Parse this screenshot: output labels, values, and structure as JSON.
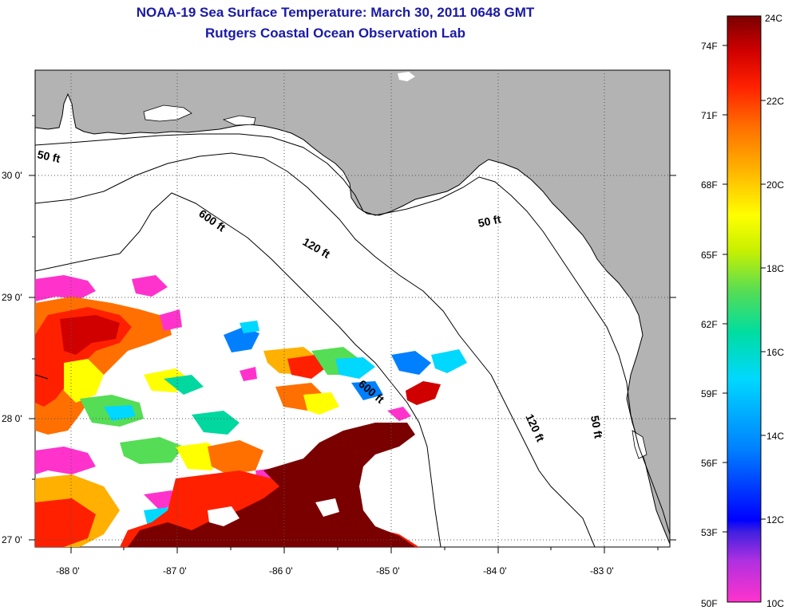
{
  "title_line1": "NOAA-19 Sea Surface Temperature:  March 30, 2011 0648 GMT",
  "title_line2": "Rutgers Coastal Ocean Observation Lab",
  "map": {
    "lon_ticks": [
      "-88 0'",
      "-87 0'",
      "-86 0'",
      "-85 0'",
      "-84 0'",
      "-83 0'"
    ],
    "lat_ticks": [
      "30 0'",
      "29 0'",
      "28 0'",
      "27 0'"
    ],
    "contour_labels": [
      "50 ft",
      "600 ft",
      "120 ft",
      "50 ft",
      "600 ft",
      "120 ft",
      "50 ft"
    ],
    "colors": {
      "land": "#b3b3b3",
      "water": "#ffffff"
    }
  },
  "colorbar": {
    "fahrenheit": [
      "74F",
      "71F",
      "68F",
      "65F",
      "62F",
      "59F",
      "56F",
      "53F",
      "50F"
    ],
    "celsius": [
      "24C",
      "22C",
      "20C",
      "18C",
      "16C",
      "14C",
      "12C",
      "10C"
    ],
    "colors": [
      "#ff33cc",
      "#7a2bd6",
      "#0000ff",
      "#0080ff",
      "#00d8ff",
      "#00d8a0",
      "#55dd55",
      "#c8f000",
      "#ffff00",
      "#ffb000",
      "#ff7000",
      "#ff2000",
      "#d00000",
      "#7a0000"
    ]
  }
}
